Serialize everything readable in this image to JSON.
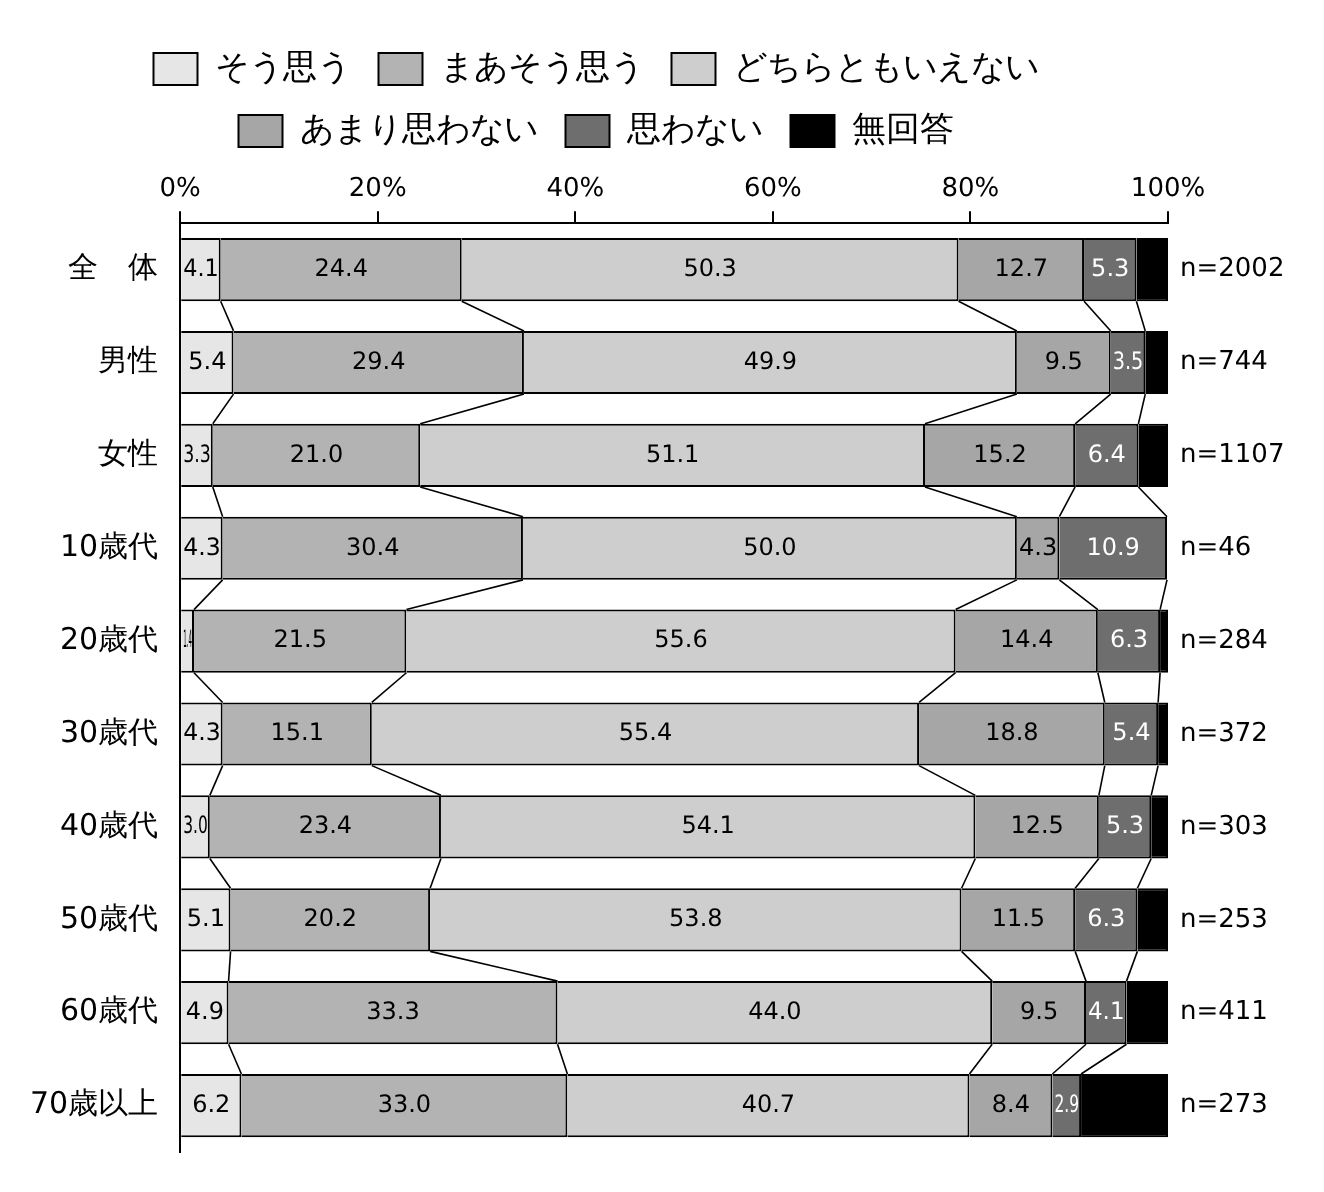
{
  "chart_data": {
    "type": "bar",
    "orientation": "horizontal",
    "stacked": true,
    "legend": "top",
    "grid": false,
    "categories": [
      "全　体",
      "男性",
      "女性",
      "10歳代",
      "20歳代",
      "30歳代",
      "40歳代",
      "50歳代",
      "60歳代",
      "70歳以上"
    ],
    "xlim": [
      0,
      100
    ],
    "xticks": [
      {
        "value": 0,
        "label": "0%"
      },
      {
        "value": 20,
        "label": "20%"
      },
      {
        "value": 40,
        "label": "40%"
      },
      {
        "value": 60,
        "label": "60%"
      },
      {
        "value": 80,
        "label": "80%"
      },
      {
        "value": 100,
        "label": "100%"
      }
    ],
    "series": [
      {
        "name": "そう思う",
        "color": "#e6e6e6",
        "values": [
          4.1,
          5.4,
          3.3,
          4.3,
          1.4,
          4.3,
          3.0,
          5.1,
          4.9,
          6.2
        ],
        "value_labels": [
          "4.1",
          "5.4",
          "3.3",
          "4.3",
          "1.4",
          "4.3",
          "3.0",
          "5.1",
          "4.9",
          "6.2"
        ]
      },
      {
        "name": "まあそう思う",
        "color": "#b3b3b3",
        "values": [
          24.4,
          29.4,
          21.0,
          30.4,
          21.5,
          15.1,
          23.4,
          20.2,
          33.3,
          33.0
        ],
        "value_labels": [
          "24.4",
          "29.4",
          "21.0",
          "30.4",
          "21.5",
          "15.1",
          "23.4",
          "20.2",
          "33.3",
          "33.0"
        ]
      },
      {
        "name": "どちらともいえない",
        "color": "#cecece",
        "values": [
          50.3,
          49.9,
          51.1,
          50.0,
          55.6,
          55.4,
          54.1,
          53.8,
          44.0,
          40.7
        ],
        "value_labels": [
          "50.3",
          "49.9",
          "51.1",
          "50.0",
          "55.6",
          "55.4",
          "54.1",
          "53.8",
          "44.0",
          "40.7"
        ]
      },
      {
        "name": "あまり思わない",
        "color": "#a6a6a6",
        "values": [
          12.7,
          9.5,
          15.2,
          4.3,
          14.4,
          18.8,
          12.5,
          11.5,
          9.5,
          8.4
        ],
        "value_labels": [
          "12.7",
          "9.5",
          "15.2",
          "4.3",
          "14.4",
          "18.8",
          "12.5",
          "11.5",
          "9.5",
          "8.4"
        ]
      },
      {
        "name": "思わない",
        "color": "#6e6e6e",
        "values": [
          5.3,
          3.5,
          6.4,
          10.9,
          6.3,
          5.4,
          5.3,
          6.3,
          4.1,
          2.9
        ],
        "value_labels": [
          "5.3",
          "3.5",
          "6.4",
          "10.9",
          "6.3",
          "5.4",
          "5.3",
          "6.3",
          "4.1",
          "2.9"
        ]
      },
      {
        "name": "無回答",
        "color": "#000000",
        "values": [
          3.2,
          2.3,
          3.0,
          0,
          0.8,
          1.0,
          1.7,
          3.1,
          4.2,
          8.8
        ]
      }
    ],
    "annotations": [
      "n=2002",
      "n=744",
      "n=1107",
      "n=46",
      "n=284",
      "n=372",
      "n=303",
      "n=253",
      "n=411",
      "n=273"
    ]
  }
}
